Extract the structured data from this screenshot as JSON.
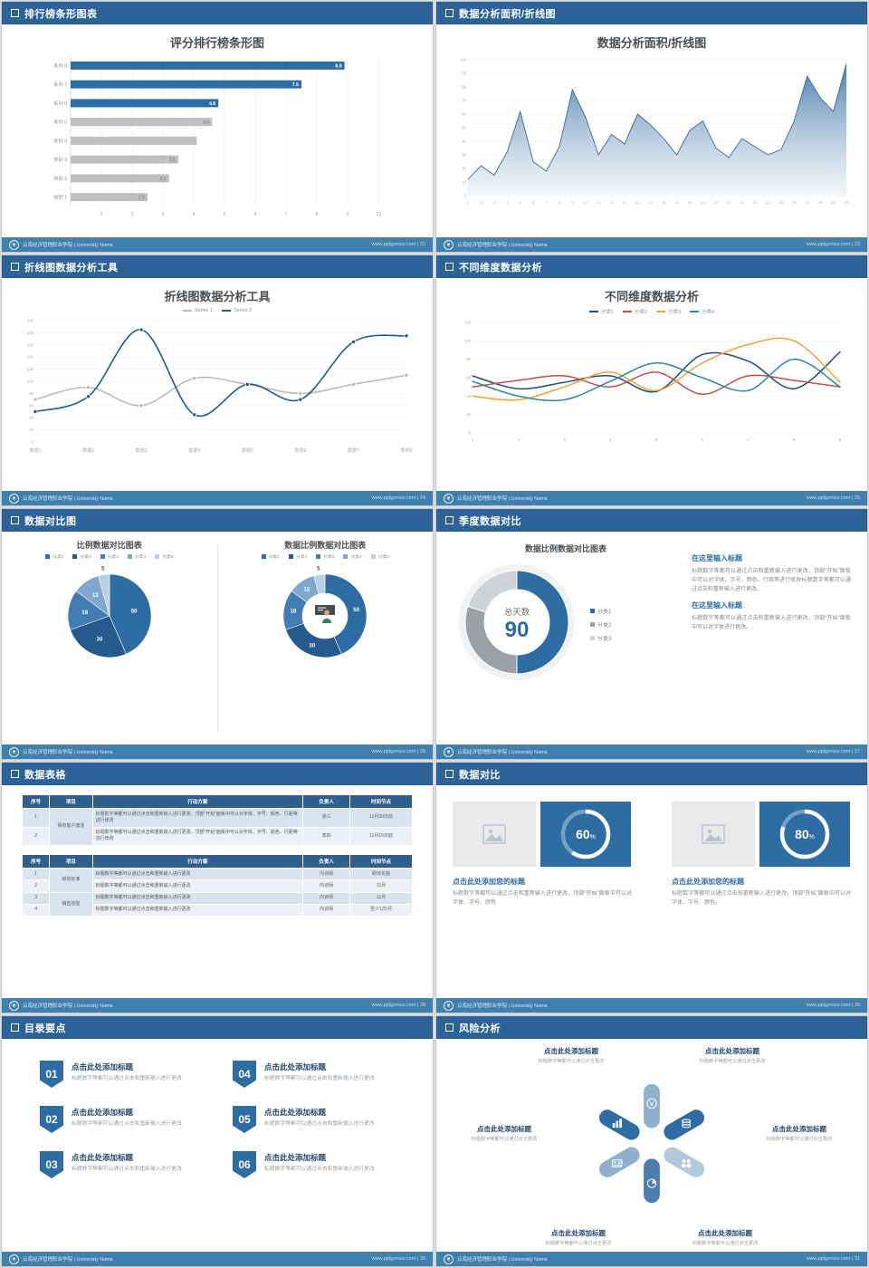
{
  "brand": {
    "footer_left": "云南经济管理职业学院 | University Name",
    "accent": "#2e6da4",
    "header_bg": "#2b6399",
    "footer_bg": "#4080ae"
  },
  "slides": [
    {
      "id": "rank-bar",
      "header": "排行榜条形图表",
      "page_footer": "www.pptgenius.com | 22",
      "title": "评分排行榜条形图",
      "chart_data": {
        "type": "bar",
        "orientation": "horizontal",
        "title": "评分排行榜条形图",
        "categories": [
          "系列 8",
          "系列 7",
          "系列 6",
          "系列 5",
          "系列 4",
          "类别 3",
          "类别 2",
          "类别 1"
        ],
        "values": [
          8.9,
          7.5,
          4.8,
          4.6,
          4.1,
          3.5,
          3.2,
          2.5
        ],
        "value_labels": [
          "8.9",
          "7.5",
          "4.8",
          "4.6",
          "",
          "3.5",
          "3.2",
          "2.5"
        ],
        "bar_colors": [
          "#2e6da4",
          "#2e6da4",
          "#2e6da4",
          "#bfbfbf",
          "#bfbfbf",
          "#bfbfbf",
          "#bfbfbf",
          "#bfbfbf"
        ],
        "xticks": [
          1,
          2,
          3,
          4,
          5,
          6,
          7,
          8,
          9,
          10
        ],
        "xlim": [
          0,
          10
        ]
      }
    },
    {
      "id": "area-line",
      "header": "数据分析面积/折线图",
      "page_footer": "www.pptgenius.com | 23",
      "title": "数据分析面积/折线图",
      "chart_data": {
        "type": "area",
        "title": "数据分析面积/折线图",
        "x": [
          1,
          2,
          3,
          4,
          5,
          6,
          7,
          8,
          9,
          10,
          11,
          12,
          13,
          14,
          15,
          16,
          17,
          18,
          19,
          20,
          21,
          22,
          23,
          24,
          25,
          26,
          27,
          28,
          29,
          30
        ],
        "values": [
          12,
          22,
          15,
          32,
          62,
          25,
          18,
          36,
          78,
          58,
          30,
          45,
          38,
          60,
          52,
          42,
          30,
          48,
          55,
          35,
          28,
          42,
          36,
          30,
          34,
          55,
          88,
          72,
          62,
          97
        ],
        "yticks": [
          0,
          10,
          20,
          30,
          40,
          50,
          60,
          70,
          80,
          90,
          100
        ],
        "ylim": [
          0,
          100
        ],
        "fill_color": "#3f76a8"
      }
    },
    {
      "id": "line-tool",
      "header": "折线图数据分析工具",
      "page_footer": "www.pptgenius.com | 24",
      "title": "折线图数据分析工具",
      "chart_data": {
        "type": "line",
        "title": "折线图数据分析工具",
        "xlabels": [
          "数据1",
          "数据2",
          "数据3",
          "数据4",
          "数据5",
          "数据6",
          "数据7",
          "数据8"
        ],
        "yticks": [
          0,
          20,
          40,
          60,
          80,
          100,
          120,
          140,
          160,
          180,
          200
        ],
        "ylim": [
          0,
          200
        ],
        "series": [
          {
            "name": "Series 1",
            "color": "#b6bbc0",
            "values": [
              70,
              90,
              60,
              105,
              95,
              80,
              95,
              110
            ]
          },
          {
            "name": "Series 2",
            "color": "#1f5c8b",
            "values": [
              50,
              75,
              185,
              45,
              95,
              70,
              165,
              175
            ]
          }
        ]
      }
    },
    {
      "id": "multi-dim",
      "header": "不同维度数据分析",
      "page_footer": "www.pptgenius.com | 25",
      "title": "不同维度数据分析",
      "chart_data": {
        "type": "line",
        "title": "不同维度数据分析",
        "xlabels": [
          "1",
          "2",
          "3",
          "4",
          "5",
          "6",
          "7",
          "8",
          "9"
        ],
        "yticks": [
          0,
          20,
          40,
          60,
          80,
          100,
          120
        ],
        "ylim": [
          0,
          120
        ],
        "series": [
          {
            "name": "分类1",
            "color": "#1f4e79",
            "values": [
              62,
              48,
              55,
              62,
              45,
              85,
              78,
              48,
              88
            ]
          },
          {
            "name": "分类2",
            "color": "#c0504d",
            "values": [
              50,
              57,
              62,
              50,
              66,
              42,
              62,
              57,
              50
            ]
          },
          {
            "name": "分类3",
            "color": "#f0a23c",
            "values": [
              40,
              36,
              50,
              66,
              46,
              76,
              96,
              100,
              55
            ]
          },
          {
            "name": "分类4",
            "color": "#31859c",
            "values": [
              56,
              40,
              36,
              56,
              76,
              60,
              46,
              80,
              50
            ]
          }
        ]
      }
    },
    {
      "id": "pie-compare",
      "header": "数据对比图",
      "page_footer": "www.pptgenius.com | 26",
      "chart_data": [
        {
          "type": "pie",
          "title": "比例数据对比图表",
          "labels": [
            "分类1",
            "分类2",
            "分类3",
            "分类4",
            "分类5"
          ],
          "values": [
            50,
            30,
            18,
            12,
            5
          ],
          "colors": [
            "#2e6da4",
            "#255a8e",
            "#417cb2",
            "#7fa6cd",
            "#b9cfe4"
          ]
        },
        {
          "type": "donut",
          "title": "数据比例数据对比图表",
          "labels": [
            "分类1",
            "分类2",
            "分类3",
            "分类4",
            "分类5"
          ],
          "values": [
            50,
            30,
            18,
            12,
            5
          ],
          "colors": [
            "#2e6da4",
            "#255a8e",
            "#417cb2",
            "#7fa6cd",
            "#b9cfe4"
          ],
          "center_icon": "presenter-icon"
        }
      ]
    },
    {
      "id": "quarter",
      "header": "季度数据对比",
      "page_footer": "www.pptgenius.com | 27",
      "title": "数据比例数据对比图表",
      "chart_data": {
        "type": "donut",
        "labels": [
          "分类1",
          "分类2",
          "分类3"
        ],
        "values": [
          50,
          30,
          20
        ],
        "colors": [
          "#2e6da4",
          "#9aa0a5",
          "#cfd3d7"
        ],
        "center_label": "总天数",
        "center_value": "90"
      },
      "blocks": [
        {
          "title": "在这里输入标题",
          "body": "标题数字等都可以通过点击和重新输入进行更改，顶部“开始”面板中可以对字体、字号、颜色、行距等进行修改标题数字等都可以通过点击和重新输入进行更改。"
        },
        {
          "title": "在这里输入标题",
          "body": "标题数字等都可以通过点击和重新输入进行更改，顶部“开始”面板中可以对字体进行更改。"
        }
      ]
    },
    {
      "id": "tables",
      "header": "数据表格",
      "page_footer": "www.pptgenius.com | 28",
      "table1": {
        "headers": [
          "序号",
          "项目",
          "行动方案",
          "负责人",
          "时间节点"
        ],
        "rows": [
          {
            "no": "1",
            "project": "保有客户激活",
            "plan": "标题数字等都可以通过点击和重新输入进行更改，顶部“开始”面板中可以对字体、字号、颜色、行距等进行修改",
            "owner": "张三",
            "time": "11月30日前"
          },
          {
            "no": "2",
            "plan": "标题数字等都可以通过点击和重新输入进行更改，顶部“开始”面板中可以对字体、字号、颜色、行距等进行修改",
            "owner": "李四",
            "time": "11月15日前"
          }
        ]
      },
      "table2": {
        "headers": [
          "序号",
          "项目",
          "行动方案",
          "负责人",
          "时间节点"
        ],
        "rows": [
          {
            "no": "1",
            "project": "绩效标准",
            "plan": "标题数字等都可以通过点击和重新输入进行更改",
            "owner": "内训师",
            "time": "即日实施"
          },
          {
            "no": "2",
            "plan": "标题数字等都可以通过点击和重新输入进行更改",
            "owner": "内训师",
            "time": "11月"
          },
          {
            "no": "3",
            "project": "销售技能",
            "plan": "标题数字等都可以通过点击和重新输入进行更改",
            "owner": "内训师",
            "time": "11月"
          },
          {
            "no": "4",
            "plan": "标题数字等都可以通过点击和重新输入进行更改",
            "owner": "内训师",
            "time": "至少1次/月"
          }
        ]
      }
    },
    {
      "id": "progress",
      "header": "数据对比",
      "page_footer": "www.pptgenius.com | 29",
      "chart_data": {
        "type": "progress-ring",
        "values": [
          60,
          80
        ],
        "unit": "%"
      },
      "cards": [
        {
          "title": "点击此处添加您的标题",
          "body": "标题数字等都可以通过点击和重新输入进行更改，顶部“开始”面板中可以对字体、字号、颜色"
        },
        {
          "title": "点击此处添加您的标题",
          "body": "标题数字等都可以通过点击和重新输入进行更改，顶部“开始”面板中可以对字体、字号、颜色。"
        }
      ]
    },
    {
      "id": "toc",
      "header": "目录要点",
      "page_footer": "www.pptgenius.com | 30",
      "items": [
        {
          "num": "01",
          "title": "点击此处添加标题",
          "body": "标题数字等都可以通过点击和重新输入进行更改"
        },
        {
          "num": "02",
          "title": "点击此处添加标题",
          "body": "标题数字等都可以通过点击和重新输入进行更改"
        },
        {
          "num": "03",
          "title": "点击此处添加标题",
          "body": "标题数字等都可以通过点击和重新输入进行更改"
        },
        {
          "num": "04",
          "title": "点击此处添加标题",
          "body": "标题数字等都可以通过点击和重新输入进行更改"
        },
        {
          "num": "05",
          "title": "点击此处添加标题",
          "body": "标题数字等都可以通过点击和重新输入进行更改"
        },
        {
          "num": "06",
          "title": "点击此处添加标题",
          "body": "标题数字等都可以通过点击和重新输入进行更改"
        }
      ]
    },
    {
      "id": "risk",
      "header": "风险分析",
      "page_footer": "www.pptgenius.com | 31",
      "wheel": {
        "petal_colors": [
          "#8fb0cd",
          "#2e6da4",
          "#b3c8db",
          "#4a7fae",
          "#8fb0cd",
          "#2e6da4"
        ],
        "icons": [
          "money-icon",
          "coins-icon",
          "people-icon",
          "pie-icon",
          "card-icon",
          "chart-icon"
        ]
      },
      "labels": [
        {
          "title": "点击此处添加标题",
          "body": "标题数字等都可以通过点击更改"
        },
        {
          "title": "点击此处添加标题",
          "body": "标题数字等都可以通过点击更改"
        },
        {
          "title": "点击此处添加标题",
          "body": "标题数字等都可以通过点击更改"
        },
        {
          "title": "点击此处添加标题",
          "body": "标题数字等都可以通过点击更改"
        },
        {
          "title": "点击此处添加标题",
          "body": "标题数字等都可以通过点击更改"
        },
        {
          "title": "点击此处添加标题",
          "body": "标题数字等都可以通过点击更改"
        }
      ]
    }
  ]
}
